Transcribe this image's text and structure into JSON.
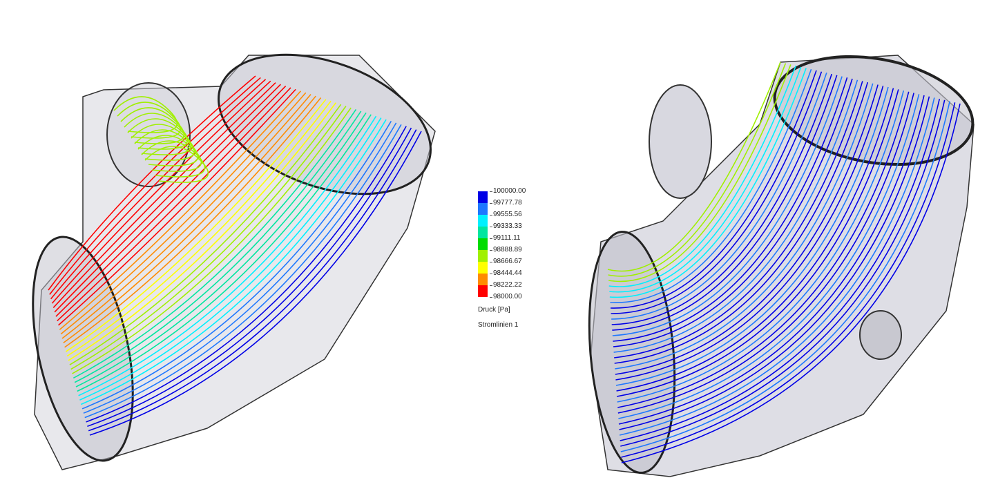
{
  "legend": {
    "quantity": "Druck [Pa]",
    "plot_name": "Stromlinien 1",
    "values": [
      "100000.00",
      "99777.78",
      "99555.56",
      "99333.33",
      "99111.11",
      "98888.89",
      "98666.67",
      "98444.44",
      "98222.22",
      "98000.00"
    ],
    "colors": [
      "#0000e6",
      "#1e78ff",
      "#00f0ff",
      "#00e6a0",
      "#00dc00",
      "#a0f000",
      "#ffff00",
      "#ff8c00",
      "#ff0000"
    ]
  },
  "views": [
    {
      "name": "left-elbow",
      "dominant_pressure": "mixed: red/yellow near inlet, blue near outlet"
    },
    {
      "name": "right-elbow",
      "dominant_pressure": "mostly blue"
    }
  ]
}
